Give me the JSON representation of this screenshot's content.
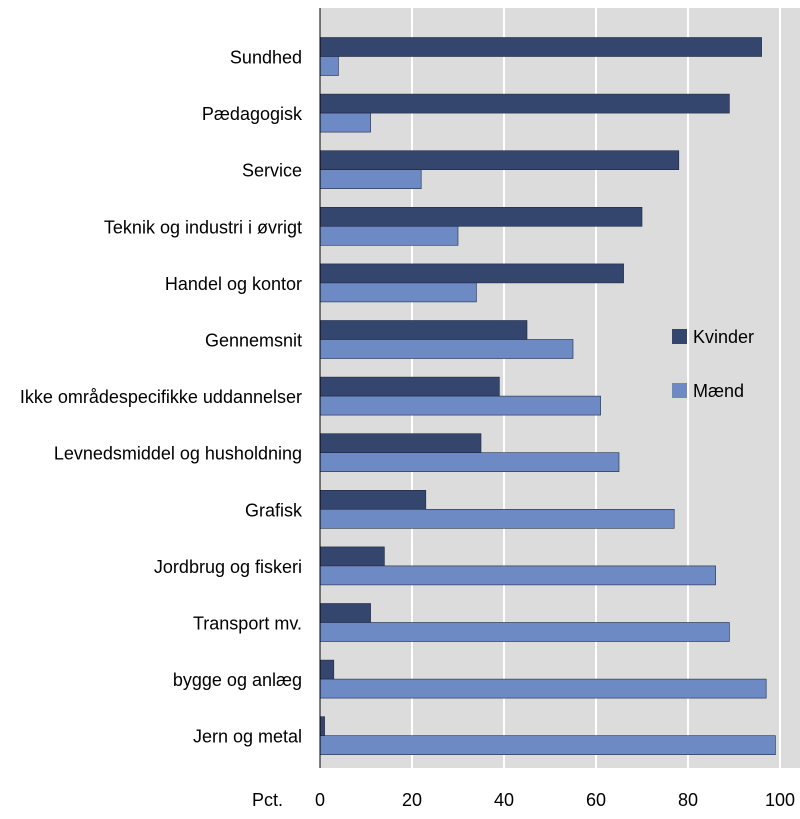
{
  "chart_data": {
    "type": "bar",
    "orientation": "horizontal",
    "categories": [
      "Sundhed",
      "Pædagogisk",
      "Service",
      "Teknik og industri i øvrigt",
      "Handel og kontor",
      "Gennemsnit",
      "Ikke områdespecifikke uddannelser",
      "Levnedsmiddel og husholdning",
      "Grafisk",
      "Jordbrug og fiskeri",
      "Transport mv.",
      "bygge og anlæg",
      "Jern og metal"
    ],
    "series": [
      {
        "name": "Kvinder",
        "color": "#34466e",
        "values": [
          96,
          89,
          78,
          70,
          66,
          45,
          39,
          35,
          23,
          14,
          11,
          3,
          1
        ]
      },
      {
        "name": "Mænd",
        "color": "#6d8ac4",
        "values": [
          4,
          11,
          22,
          30,
          34,
          55,
          61,
          65,
          77,
          86,
          89,
          97,
          99
        ]
      }
    ],
    "xlabel": "Pct.",
    "xlim": [
      0,
      100
    ],
    "xticks": [
      "0",
      "20",
      "40",
      "60",
      "80",
      "100"
    ],
    "grid": true,
    "legend": "right"
  }
}
